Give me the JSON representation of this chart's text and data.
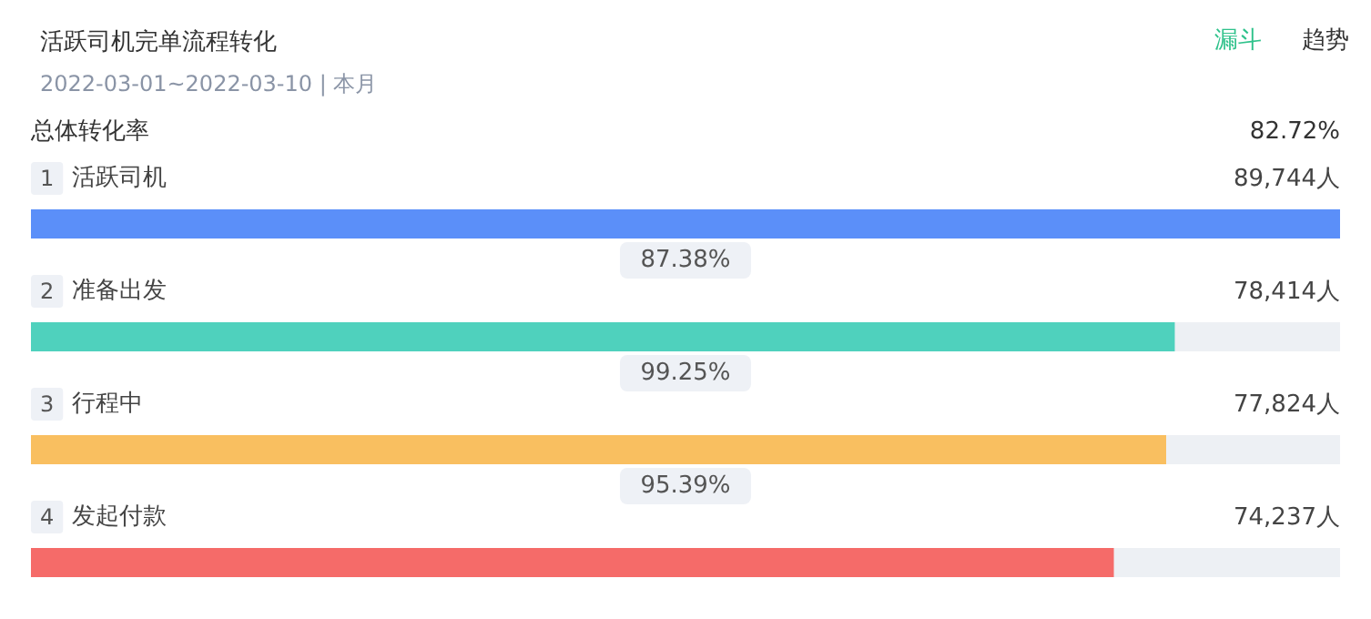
{
  "chart_data": {
    "type": "bar",
    "orientation": "horizontal",
    "title": "活跃司机完单流程转化",
    "subtitle": "2022-03-01~2022-03-10 | 本月",
    "categories": [
      "1 活跃司机",
      "2 准备出发",
      "3 行程中",
      "4 发起付款"
    ],
    "values": [
      89744,
      78414,
      77824,
      74237
    ],
    "colors": [
      "#5b8ff9",
      "#4fd1bd",
      "#f9bf60",
      "#f56b69"
    ],
    "value_labels": [
      "89,744人",
      "78,414人",
      "77,824人",
      "74,237人"
    ],
    "annotations": [
      "漏斗",
      "趋势",
      "总体转化率",
      "82.72%",
      "87.38%",
      "99.25%",
      "95.39%"
    ]
  }
}
